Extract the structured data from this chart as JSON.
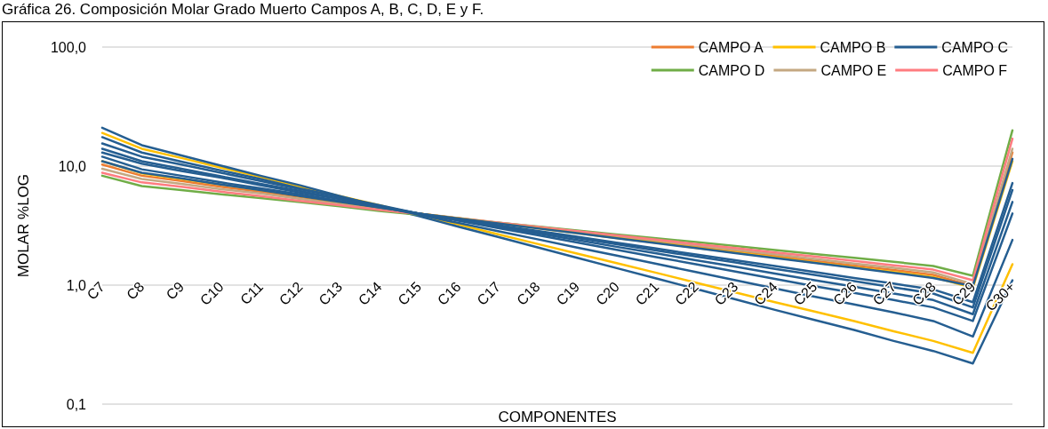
{
  "chart_data": {
    "type": "line",
    "title": "Gráfica 26. Composición Molar Grado Muerto Campos A, B, C, D, E y F.",
    "xlabel": "COMPONENTES",
    "ylabel": "MOLAR %LOG",
    "categories": [
      "C7",
      "C8",
      "C9",
      "C10",
      "C11",
      "C12",
      "C13",
      "C14",
      "C15",
      "C16",
      "C17",
      "C18",
      "C19",
      "C20",
      "C21",
      "C22",
      "C23",
      "C24",
      "C25",
      "C26",
      "C27",
      "C28",
      "C29",
      "C30+"
    ],
    "log": "y",
    "ylim": [
      0.1,
      100
    ],
    "yticks": [
      {
        "value": 0.1,
        "label": "0,1"
      },
      {
        "value": 1,
        "label": "1,0"
      },
      {
        "value": 10,
        "label": "10,0"
      },
      {
        "value": 100,
        "label": "100,0"
      }
    ],
    "grid": "y",
    "legend": "top right",
    "marker": "none",
    "line_style": "solid",
    "series": [
      {
        "name": "CAMPO A",
        "color": "#ed7d31",
        "values": [
          10.3,
          8.3,
          7.5,
          6.7,
          6.1,
          5.5,
          4.9,
          4.4,
          4,
          3.65,
          3.33,
          3.04,
          2.78,
          2.53,
          2.31,
          2.11,
          1.93,
          1.76,
          1.6,
          1.46,
          1.34,
          1.22,
          0.98,
          13
        ]
      },
      {
        "name": "CAMPO B",
        "color": "#ffc000",
        "values": [
          19,
          14,
          11.7,
          9.7,
          8.1,
          6.7,
          5.6,
          4.7,
          3.9,
          3.23,
          2.68,
          2.22,
          1.84,
          1.53,
          1.27,
          1.05,
          0.87,
          0.72,
          0.6,
          0.5,
          0.41,
          0.34,
          0.27,
          1.5
        ]
      },
      {
        "name": "CAMPO C",
        "color": "#255e91",
        "values": [
          21,
          15,
          12.3,
          10.1,
          8.3,
          6.9,
          5.6,
          4.6,
          3.8,
          3.1,
          2.54,
          2.08,
          1.7,
          1.39,
          1.14,
          0.93,
          0.76,
          0.62,
          0.51,
          0.42,
          0.34,
          0.28,
          0.22,
          1.1
        ]
      },
      {
        "name": "CAMPO D",
        "color": "#70ad47",
        "values": [
          8.3,
          6.8,
          6.3,
          5.8,
          5.4,
          5,
          4.6,
          4.2,
          3.9,
          3.61,
          3.35,
          3.11,
          2.88,
          2.67,
          2.48,
          2.3,
          2.13,
          1.97,
          1.83,
          1.7,
          1.57,
          1.45,
          1.2,
          20
        ]
      },
      {
        "name": "CAMPO E",
        "color": "#c4a882",
        "values": [
          9.5,
          7.8,
          7.1,
          6.4,
          5.9,
          5.3,
          4.8,
          4.4,
          4,
          3.66,
          3.36,
          3.08,
          2.82,
          2.58,
          2.37,
          2.17,
          1.98,
          1.82,
          1.66,
          1.52,
          1.4,
          1.28,
          1.02,
          14
        ]
      },
      {
        "name": "CAMPO F",
        "color": "#ff7c80",
        "values": [
          8.8,
          7.3,
          6.7,
          6.1,
          5.6,
          5.1,
          4.7,
          4.3,
          3.95,
          3.64,
          3.35,
          3.09,
          2.84,
          2.62,
          2.41,
          2.22,
          2.05,
          1.88,
          1.74,
          1.6,
          1.47,
          1.35,
          1.1,
          17
        ]
      },
      {
        "color": "#ffc000",
        "values": [
          11,
          8.7,
          7.8,
          7,
          6.3,
          5.6,
          5,
          4.5,
          4,
          3.64,
          3.31,
          3.01,
          2.74,
          2.49,
          2.27,
          2.06,
          1.88,
          1.71,
          1.55,
          1.41,
          1.29,
          1.17,
          0.95,
          11
        ]
      },
      {
        "color": "#255e91",
        "values": [
          17.5,
          13,
          10.9,
          9.2,
          7.8,
          6.5,
          5.5,
          4.6,
          3.9,
          3.33,
          2.84,
          2.43,
          2.07,
          1.77,
          1.51,
          1.29,
          1.1,
          0.94,
          0.8,
          0.69,
          0.59,
          0.5,
          0.37,
          2.4
        ]
      },
      {
        "color": "#255e91",
        "values": [
          15.5,
          12,
          10.3,
          8.8,
          7.5,
          6.4,
          5.5,
          4.7,
          4,
          3.48,
          3.02,
          2.63,
          2.28,
          1.98,
          1.72,
          1.5,
          1.3,
          1.13,
          0.98,
          0.86,
          0.75,
          0.65,
          0.5,
          4
        ]
      },
      {
        "color": "#255e91",
        "values": [
          14,
          11,
          9.5,
          8.2,
          7.1,
          6.2,
          5.3,
          4.6,
          4,
          3.52,
          3.09,
          2.72,
          2.39,
          2.1,
          1.85,
          1.62,
          1.43,
          1.25,
          1.1,
          0.97,
          0.85,
          0.75,
          0.57,
          5
        ]
      },
      {
        "color": "#255e91",
        "values": [
          13,
          10.5,
          9.1,
          8,
          6.9,
          6,
          5.3,
          4.6,
          4,
          3.55,
          3.15,
          2.8,
          2.49,
          2.21,
          1.96,
          1.74,
          1.55,
          1.37,
          1.22,
          1.08,
          0.96,
          0.85,
          0.65,
          6.3
        ]
      },
      {
        "color": "#255e91",
        "values": [
          11,
          8.8,
          7.9,
          7,
          6.3,
          5.6,
          5,
          4.5,
          4,
          3.57,
          3.19,
          2.85,
          2.55,
          2.27,
          2.03,
          1.81,
          1.62,
          1.45,
          1.29,
          1.15,
          1.03,
          0.92,
          0.72,
          7.2
        ]
      },
      {
        "color": "#255e91",
        "values": [
          12,
          9.4,
          8.3,
          7.3,
          6.5,
          5.8,
          5.1,
          4.5,
          4,
          3.63,
          3.3,
          3,
          2.73,
          2.48,
          2.25,
          2.05,
          1.86,
          1.69,
          1.54,
          1.4,
          1.27,
          1.15,
          0.98,
          11.5
        ]
      }
    ]
  }
}
